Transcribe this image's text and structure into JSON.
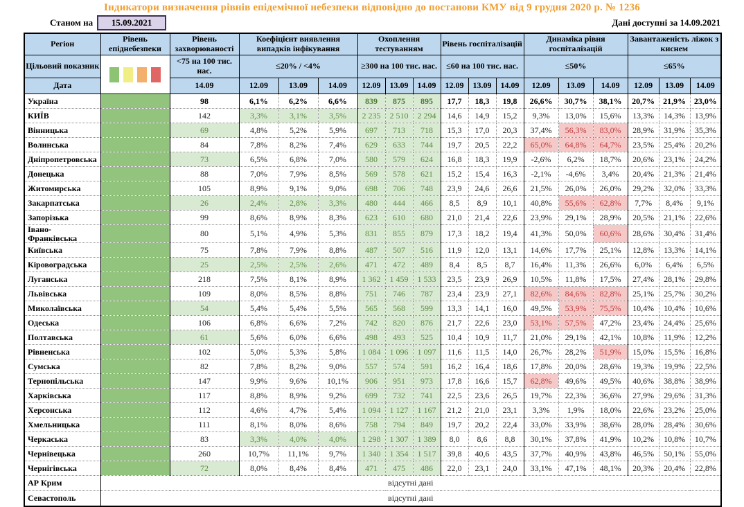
{
  "title": "Індикатори визначення рівнів епідемічної небезпеки відповідно до постанови КМУ від 9 грудня 2020 р. № 1236",
  "toolbar": {
    "as_of_label": "Станом на",
    "as_of_date": "15.09.2021",
    "available_label": "Дані доступні за",
    "available_date": "14.09.2021"
  },
  "legend_colors": [
    "#8CC474",
    "#F2EE86",
    "#F2B06C",
    "#E06666"
  ],
  "header": {
    "region": "Регіон",
    "epi": "Рівень епіднебезпеки",
    "target_label": "Цільовий показник",
    "date_label": "Дата",
    "groups": [
      {
        "label": "Рівень захворюваності",
        "target": "<75 на 100 тис. нас.",
        "dates": [
          "14.09"
        ]
      },
      {
        "label": "Коефіцієнт виявлення випадків інфікування",
        "target": "≤20% / <4%",
        "dates": [
          "12.09",
          "13.09",
          "14.09"
        ]
      },
      {
        "label": "Охоплення тестуванням",
        "target": "≥300 на 100 тис. нас.",
        "dates": [
          "12.09",
          "13.09",
          "14.09"
        ]
      },
      {
        "label": "Рівень госпіталізацій",
        "target": "≤60 на 100 тис. нас.",
        "dates": [
          "12.09",
          "13.09",
          "14.09"
        ]
      },
      {
        "label": "Динаміка рівня госпіталізацій",
        "target": "≤50%",
        "dates": [
          "12.09",
          "13.09",
          "14.09"
        ]
      },
      {
        "label": "Завантаженість ліжок з киснем",
        "target": "≤65%",
        "dates": [
          "12.09",
          "13.09",
          "14.09"
        ]
      }
    ]
  },
  "no_data_text": "відсутні дані",
  "rows": [
    {
      "region": "Україна",
      "bold": true,
      "inc": "98",
      "det": [
        "6,1%",
        "6,2%",
        "6,6%"
      ],
      "test": [
        "839",
        "875",
        "895"
      ],
      "hosp": [
        "17,7",
        "18,3",
        "19,8"
      ],
      "dyn": [
        "26,6%",
        "30,7%",
        "38,1%"
      ],
      "oxy": [
        "20,7%",
        "21,9%",
        "23,0%"
      ]
    },
    {
      "region": "КИЇВ",
      "inc": "142",
      "det": [
        "3,3%",
        "3,1%",
        "3,5%"
      ],
      "det_h": [
        "g",
        "g",
        "g"
      ],
      "test": [
        "2 235",
        "2 510",
        "2 294"
      ],
      "hosp": [
        "14,6",
        "14,9",
        "15,2"
      ],
      "dyn": [
        "9,3%",
        "13,0%",
        "15,6%"
      ],
      "oxy": [
        "13,3%",
        "14,3%",
        "13,9%"
      ]
    },
    {
      "region": "Вінницька",
      "inc": "69",
      "inc_h": "g",
      "det": [
        "4,8%",
        "5,2%",
        "5,9%"
      ],
      "test": [
        "697",
        "713",
        "718"
      ],
      "hosp": [
        "15,3",
        "17,0",
        "20,3"
      ],
      "dyn": [
        "37,4%",
        "56,3%",
        "83,0%"
      ],
      "dyn_h": [
        "",
        "r",
        "r"
      ],
      "oxy": [
        "28,9%",
        "31,9%",
        "35,3%"
      ]
    },
    {
      "region": "Волинська",
      "inc": "84",
      "det": [
        "7,8%",
        "8,2%",
        "7,4%"
      ],
      "test": [
        "629",
        "633",
        "744"
      ],
      "hosp": [
        "19,7",
        "20,5",
        "22,2"
      ],
      "dyn": [
        "65,0%",
        "64,8%",
        "64,7%"
      ],
      "dyn_h": [
        "r",
        "r",
        "r"
      ],
      "oxy": [
        "23,5%",
        "25,4%",
        "20,2%"
      ]
    },
    {
      "region": "Дніпропетровська",
      "inc": "73",
      "inc_h": "g",
      "det": [
        "6,5%",
        "6,8%",
        "7,0%"
      ],
      "test": [
        "580",
        "579",
        "624"
      ],
      "hosp": [
        "16,8",
        "18,3",
        "19,9"
      ],
      "dyn": [
        "-2,6%",
        "6,2%",
        "18,7%"
      ],
      "oxy": [
        "20,6%",
        "23,1%",
        "24,2%"
      ]
    },
    {
      "region": "Донецька",
      "inc": "88",
      "det": [
        "7,0%",
        "7,9%",
        "8,5%"
      ],
      "test": [
        "569",
        "578",
        "621"
      ],
      "hosp": [
        "15,2",
        "15,4",
        "16,3"
      ],
      "dyn": [
        "-2,1%",
        "-4,6%",
        "3,4%"
      ],
      "oxy": [
        "20,4%",
        "21,3%",
        "21,4%"
      ]
    },
    {
      "region": "Житомирська",
      "inc": "105",
      "det": [
        "8,9%",
        "9,1%",
        "9,0%"
      ],
      "test": [
        "698",
        "706",
        "748"
      ],
      "hosp": [
        "23,9",
        "24,6",
        "26,6"
      ],
      "dyn": [
        "21,5%",
        "26,0%",
        "26,0%"
      ],
      "oxy": [
        "29,2%",
        "32,0%",
        "33,3%"
      ]
    },
    {
      "region": "Закарпатська",
      "inc": "26",
      "inc_h": "g",
      "det": [
        "2,4%",
        "2,8%",
        "3,3%"
      ],
      "det_h": [
        "g",
        "g",
        "g"
      ],
      "test": [
        "480",
        "444",
        "466"
      ],
      "hosp": [
        "8,5",
        "8,9",
        "10,1"
      ],
      "dyn": [
        "40,8%",
        "55,6%",
        "62,8%"
      ],
      "dyn_h": [
        "",
        "r",
        "r"
      ],
      "oxy": [
        "7,7%",
        "8,4%",
        "9,1%"
      ]
    },
    {
      "region": "Запорізька",
      "inc": "99",
      "det": [
        "8,6%",
        "8,9%",
        "8,3%"
      ],
      "test": [
        "623",
        "610",
        "680"
      ],
      "hosp": [
        "21,0",
        "21,4",
        "22,6"
      ],
      "dyn": [
        "23,9%",
        "29,1%",
        "28,9%"
      ],
      "oxy": [
        "20,5%",
        "21,1%",
        "22,6%"
      ]
    },
    {
      "region": "Івано-Франківська",
      "inc": "80",
      "det": [
        "5,1%",
        "4,9%",
        "5,3%"
      ],
      "test": [
        "831",
        "855",
        "879"
      ],
      "hosp": [
        "17,3",
        "18,2",
        "19,4"
      ],
      "dyn": [
        "41,3%",
        "50,0%",
        "60,6%"
      ],
      "dyn_h": [
        "",
        "",
        "r"
      ],
      "oxy": [
        "28,6%",
        "30,4%",
        "31,4%"
      ]
    },
    {
      "region": "Київська",
      "inc": "75",
      "det": [
        "7,8%",
        "7,9%",
        "8,8%"
      ],
      "test": [
        "487",
        "507",
        "516"
      ],
      "hosp": [
        "11,9",
        "12,0",
        "13,1"
      ],
      "dyn": [
        "14,6%",
        "17,7%",
        "25,1%"
      ],
      "oxy": [
        "12,8%",
        "13,3%",
        "14,1%"
      ]
    },
    {
      "region": "Кіровоградська",
      "inc": "25",
      "inc_h": "g",
      "det": [
        "2,5%",
        "2,5%",
        "2,6%"
      ],
      "det_h": [
        "g",
        "g",
        "g"
      ],
      "test": [
        "471",
        "472",
        "489"
      ],
      "hosp": [
        "8,4",
        "8,5",
        "8,7"
      ],
      "dyn": [
        "16,4%",
        "11,3%",
        "26,6%"
      ],
      "oxy": [
        "6,0%",
        "6,4%",
        "6,5%"
      ]
    },
    {
      "region": "Луганська",
      "inc": "218",
      "det": [
        "7,5%",
        "8,1%",
        "8,9%"
      ],
      "test": [
        "1 362",
        "1 459",
        "1 533"
      ],
      "hosp": [
        "23,5",
        "23,9",
        "26,9"
      ],
      "dyn": [
        "10,5%",
        "11,8%",
        "17,5%"
      ],
      "oxy": [
        "27,4%",
        "28,1%",
        "29,8%"
      ]
    },
    {
      "region": "Львівська",
      "inc": "109",
      "det": [
        "8,0%",
        "8,5%",
        "8,8%"
      ],
      "test": [
        "751",
        "746",
        "787"
      ],
      "hosp": [
        "23,4",
        "23,9",
        "27,1"
      ],
      "dyn": [
        "82,6%",
        "84,6%",
        "82,8%"
      ],
      "dyn_h": [
        "r",
        "r",
        "r"
      ],
      "oxy": [
        "25,1%",
        "25,7%",
        "30,2%"
      ]
    },
    {
      "region": "Миколаївська",
      "inc": "54",
      "inc_h": "g",
      "det": [
        "5,4%",
        "5,4%",
        "5,5%"
      ],
      "test": [
        "565",
        "568",
        "599"
      ],
      "hosp": [
        "13,3",
        "14,1",
        "16,0"
      ],
      "dyn": [
        "49,5%",
        "53,9%",
        "75,5%"
      ],
      "dyn_h": [
        "",
        "r",
        "r"
      ],
      "oxy": [
        "10,4%",
        "10,4%",
        "10,6%"
      ]
    },
    {
      "region": "Одеська",
      "inc": "106",
      "det": [
        "6,8%",
        "6,6%",
        "7,2%"
      ],
      "test": [
        "742",
        "820",
        "876"
      ],
      "hosp": [
        "21,7",
        "22,6",
        "23,0"
      ],
      "dyn": [
        "53,1%",
        "57,5%",
        "47,2%"
      ],
      "dyn_h": [
        "r",
        "r",
        ""
      ],
      "oxy": [
        "23,4%",
        "24,4%",
        "25,6%"
      ]
    },
    {
      "region": "Полтавська",
      "inc": "61",
      "inc_h": "g",
      "det": [
        "5,6%",
        "6,0%",
        "6,6%"
      ],
      "test": [
        "498",
        "493",
        "525"
      ],
      "hosp": [
        "10,4",
        "10,9",
        "11,7"
      ],
      "dyn": [
        "21,0%",
        "29,1%",
        "42,1%"
      ],
      "oxy": [
        "10,8%",
        "11,9%",
        "12,2%"
      ]
    },
    {
      "region": "Рівненська",
      "inc": "102",
      "det": [
        "5,0%",
        "5,3%",
        "5,8%"
      ],
      "test": [
        "1 084",
        "1 096",
        "1 097"
      ],
      "hosp": [
        "11,6",
        "11,5",
        "14,0"
      ],
      "dyn": [
        "26,7%",
        "28,2%",
        "51,9%"
      ],
      "dyn_h": [
        "",
        "",
        "r"
      ],
      "oxy": [
        "15,0%",
        "15,5%",
        "16,8%"
      ]
    },
    {
      "region": "Сумська",
      "inc": "82",
      "det": [
        "7,8%",
        "8,2%",
        "9,0%"
      ],
      "test": [
        "557",
        "574",
        "591"
      ],
      "hosp": [
        "16,2",
        "16,4",
        "18,6"
      ],
      "dyn": [
        "17,8%",
        "20,0%",
        "28,6%"
      ],
      "oxy": [
        "19,3%",
        "19,9%",
        "22,5%"
      ]
    },
    {
      "region": "Тернопільська",
      "inc": "147",
      "det": [
        "9,9%",
        "9,6%",
        "10,1%"
      ],
      "test": [
        "906",
        "951",
        "973"
      ],
      "hosp": [
        "17,8",
        "16,6",
        "15,7"
      ],
      "dyn": [
        "62,8%",
        "49,6%",
        "49,5%"
      ],
      "dyn_h": [
        "r",
        "",
        ""
      ],
      "oxy": [
        "40,6%",
        "38,8%",
        "38,9%"
      ]
    },
    {
      "region": "Харківська",
      "inc": "117",
      "det": [
        "8,8%",
        "8,9%",
        "9,2%"
      ],
      "test": [
        "699",
        "732",
        "741"
      ],
      "hosp": [
        "22,5",
        "23,6",
        "26,5"
      ],
      "dyn": [
        "19,7%",
        "22,3%",
        "36,6%"
      ],
      "oxy": [
        "27,9%",
        "29,6%",
        "31,3%"
      ]
    },
    {
      "region": "Херсонська",
      "inc": "112",
      "det": [
        "4,6%",
        "4,7%",
        "5,4%"
      ],
      "test": [
        "1 094",
        "1 127",
        "1 167"
      ],
      "hosp": [
        "21,2",
        "21,0",
        "23,1"
      ],
      "dyn": [
        "3,3%",
        "1,9%",
        "18,0%"
      ],
      "oxy": [
        "22,6%",
        "23,2%",
        "25,0%"
      ]
    },
    {
      "region": "Хмельницька",
      "inc": "111",
      "det": [
        "8,1%",
        "8,0%",
        "8,6%"
      ],
      "test": [
        "758",
        "794",
        "849"
      ],
      "hosp": [
        "19,7",
        "20,2",
        "22,4"
      ],
      "dyn": [
        "33,0%",
        "33,9%",
        "38,6%"
      ],
      "oxy": [
        "28,0%",
        "28,4%",
        "30,6%"
      ]
    },
    {
      "region": "Черкаська",
      "inc": "83",
      "det": [
        "3,3%",
        "4,0%",
        "4,0%"
      ],
      "det_h": [
        "g",
        "g",
        "g"
      ],
      "test": [
        "1 298",
        "1 307",
        "1 389"
      ],
      "hosp": [
        "8,0",
        "8,6",
        "8,8"
      ],
      "dyn": [
        "30,1%",
        "37,8%",
        "41,9%"
      ],
      "oxy": [
        "10,2%",
        "10,8%",
        "10,7%"
      ]
    },
    {
      "region": "Чернівецька",
      "inc": "260",
      "det": [
        "10,7%",
        "11,1%",
        "9,7%"
      ],
      "test": [
        "1 340",
        "1 354",
        "1 517"
      ],
      "hosp": [
        "39,8",
        "40,6",
        "43,5"
      ],
      "dyn": [
        "37,7%",
        "40,9%",
        "43,8%"
      ],
      "oxy": [
        "46,5%",
        "50,1%",
        "55,0%"
      ]
    },
    {
      "region": "Чернігівська",
      "inc": "72",
      "inc_h": "g",
      "det": [
        "8,0%",
        "8,4%",
        "8,4%"
      ],
      "test": [
        "471",
        "475",
        "486"
      ],
      "hosp": [
        "22,0",
        "23,1",
        "24,0"
      ],
      "dyn": [
        "33,1%",
        "47,1%",
        "48,1%"
      ],
      "oxy": [
        "20,3%",
        "20,4%",
        "22,8%"
      ]
    },
    {
      "region": "АР Крим",
      "no_data": true
    },
    {
      "region": "Севастополь",
      "no_data": true
    }
  ]
}
